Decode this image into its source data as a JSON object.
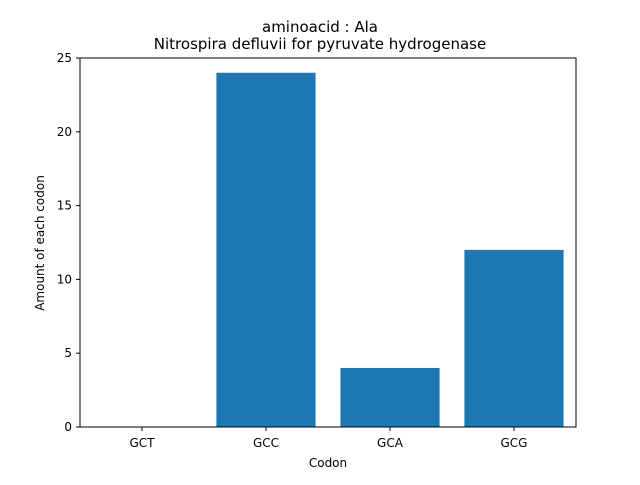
{
  "chart_data": {
    "type": "bar",
    "title": "aminoacid : Ala",
    "subtitle": "Nitrospira defluvii for pyruvate hydrogenase",
    "xlabel": "Codon",
    "ylabel": "Amount of each codon",
    "categories": [
      "GCT",
      "GCC",
      "GCA",
      "GCG"
    ],
    "values": [
      0,
      24,
      4,
      12
    ],
    "ylim": [
      0,
      25
    ],
    "yticks": [
      0,
      5,
      10,
      15,
      20,
      25
    ],
    "grid": false,
    "legend": "none",
    "bar_color": "#1f77b4"
  }
}
